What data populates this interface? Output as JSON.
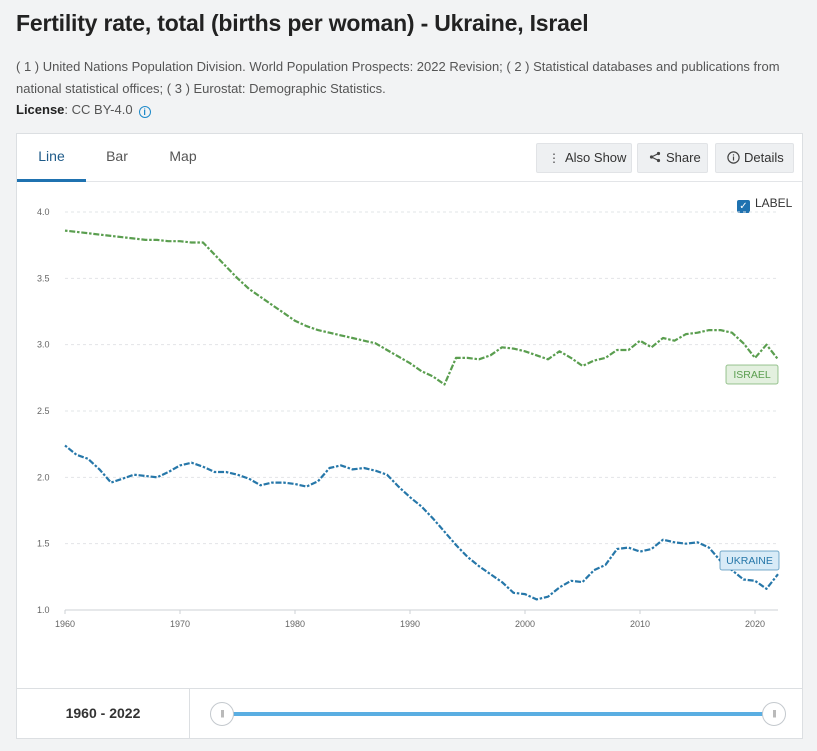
{
  "page": {
    "title": "Fertility rate, total (births per woman) - Ukraine, Israel",
    "source": "( 1 ) United Nations Population Division. World Population Prospects: 2022 Revision; ( 2 ) Statistical databases and publications from national statistical offices; ( 3 ) Eurostat: Demographic Statistics.",
    "license_label": "License",
    "license_value": ": CC BY-4.0",
    "info_icon": "info-icon"
  },
  "tabs": [
    {
      "label": "Line",
      "active": true
    },
    {
      "label": "Bar",
      "active": false
    },
    {
      "label": "Map",
      "active": false
    }
  ],
  "toolbar": {
    "also_show": {
      "label": "Also Show",
      "icon": "kebab-icon"
    },
    "share": {
      "label": "Share",
      "icon": "share-icon"
    },
    "details": {
      "label": "Details",
      "icon": "info-icon"
    }
  },
  "label_toggle": {
    "label": "LABEL",
    "checked": true
  },
  "range": {
    "start": "1960",
    "sep": " - ",
    "end": "2022"
  },
  "colors": {
    "israel": "#5a9e4f",
    "ukraine": "#2677a9",
    "accent": "#1f72b0"
  },
  "chart_data": {
    "type": "line",
    "title": "",
    "xlabel": "",
    "ylabel": "",
    "xlim": [
      1960,
      2022
    ],
    "ylim": [
      1.0,
      4.0
    ],
    "yticks": [
      "1.0",
      "1.5",
      "2.0",
      "2.5",
      "3.0",
      "3.5",
      "4.0"
    ],
    "xticks": [
      "1960",
      "1970",
      "1980",
      "1990",
      "2000",
      "2010",
      "2020"
    ],
    "grid": "horizontal dashed",
    "x": [
      1960,
      1961,
      1962,
      1963,
      1964,
      1965,
      1966,
      1967,
      1968,
      1969,
      1970,
      1971,
      1972,
      1973,
      1974,
      1975,
      1976,
      1977,
      1978,
      1979,
      1980,
      1981,
      1982,
      1983,
      1984,
      1985,
      1986,
      1987,
      1988,
      1989,
      1990,
      1991,
      1992,
      1993,
      1994,
      1995,
      1996,
      1997,
      1998,
      1999,
      2000,
      2001,
      2002,
      2003,
      2004,
      2005,
      2006,
      2007,
      2008,
      2009,
      2010,
      2011,
      2012,
      2013,
      2014,
      2015,
      2016,
      2017,
      2018,
      2019,
      2020,
      2021,
      2022
    ],
    "series": [
      {
        "name": "ISRAEL",
        "values": [
          3.86,
          3.85,
          3.84,
          3.83,
          3.82,
          3.81,
          3.8,
          3.79,
          3.79,
          3.78,
          3.78,
          3.77,
          3.77,
          3.68,
          3.59,
          3.5,
          3.42,
          3.36,
          3.3,
          3.24,
          3.18,
          3.14,
          3.11,
          3.09,
          3.07,
          3.05,
          3.03,
          3.01,
          2.96,
          2.91,
          2.86,
          2.8,
          2.76,
          2.7,
          2.9,
          2.9,
          2.89,
          2.92,
          2.98,
          2.97,
          2.95,
          2.92,
          2.89,
          2.95,
          2.9,
          2.84,
          2.88,
          2.9,
          2.96,
          2.96,
          3.03,
          2.98,
          3.05,
          3.03,
          3.08,
          3.09,
          3.11,
          3.11,
          3.09,
          3.01,
          2.9,
          3.0,
          2.89
        ]
      },
      {
        "name": "UKRAINE",
        "values": [
          2.24,
          2.17,
          2.14,
          2.06,
          1.96,
          1.99,
          2.02,
          2.01,
          2.0,
          2.04,
          2.09,
          2.11,
          2.08,
          2.04,
          2.04,
          2.02,
          1.99,
          1.94,
          1.96,
          1.96,
          1.95,
          1.93,
          1.97,
          2.07,
          2.09,
          2.06,
          2.07,
          2.05,
          2.02,
          1.93,
          1.85,
          1.78,
          1.69,
          1.59,
          1.49,
          1.4,
          1.33,
          1.27,
          1.21,
          1.13,
          1.12,
          1.08,
          1.1,
          1.17,
          1.22,
          1.21,
          1.3,
          1.34,
          1.46,
          1.47,
          1.44,
          1.46,
          1.53,
          1.51,
          1.5,
          1.51,
          1.47,
          1.37,
          1.3,
          1.23,
          1.22,
          1.16,
          1.27
        ]
      }
    ]
  }
}
